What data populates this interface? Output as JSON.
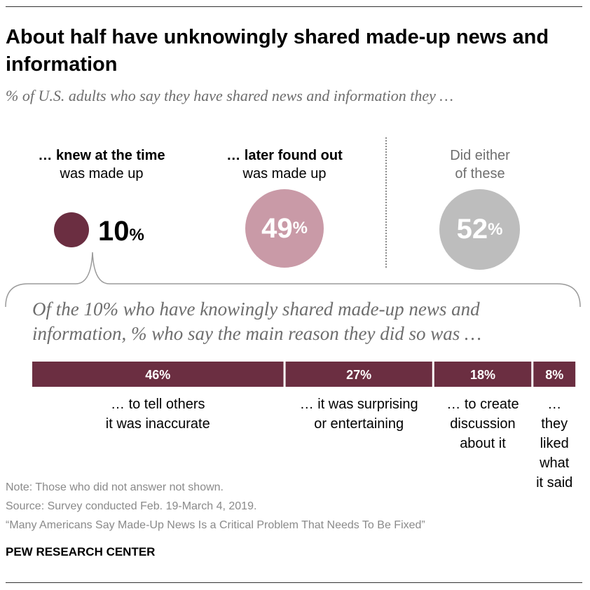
{
  "title": "About half have unknowingly shared made-up news and information",
  "subtitle": "% of U.S. adults who say they have shared news and information they …",
  "columns": {
    "knew": {
      "head_bold": "… knew at the time",
      "head_rest": "was made up",
      "value": "10",
      "unit": "%"
    },
    "later": {
      "head_bold": "… later found out",
      "head_rest": "was made up",
      "value": "49",
      "unit": "%"
    },
    "either": {
      "head_line1": "Did either",
      "head_line2": "of these",
      "value": "52",
      "unit": "%"
    }
  },
  "question": "Of the 10% who have knowingly shared made-up news and information, % who say the main reason they did so was …",
  "chart_data": {
    "type": "bar",
    "orientation": "horizontal-stacked",
    "title": "Of the 10% who have knowingly shared made-up news and information, % who say the main reason they did so was …",
    "categories": [
      "… to tell others it was inaccurate",
      "… it was surprising or entertaining",
      "… to create discussion about it",
      "… they liked what it said"
    ],
    "values": [
      46,
      27,
      18,
      8
    ],
    "labels": [
      "46%",
      "27%",
      "18%",
      "8%"
    ],
    "reason_lines": [
      [
        "… to tell others",
        "it was inaccurate"
      ],
      [
        "… it was surprising",
        "or entertaining"
      ],
      [
        "… to create",
        "discussion",
        "about it"
      ],
      [
        "… they",
        "liked",
        "what",
        "it said"
      ]
    ],
    "overall_shares": [
      {
        "label": "… knew at the time was made up",
        "value": 10
      },
      {
        "label": "… later found out was made up",
        "value": 49
      },
      {
        "label": "Did either of these",
        "value": 52
      }
    ]
  },
  "colors": {
    "knew": "#6b2e41",
    "later": "#c99aa7",
    "either": "#bdbdbd",
    "bar": "#6b2e41"
  },
  "footer": {
    "note": "Note: Those who did not answer not shown.",
    "source": "Source: Survey conducted Feb. 19-March 4, 2019.",
    "report": "“Many Americans Say Made-Up News Is a Critical Problem That Needs To Be Fixed”",
    "brand": "PEW RESEARCH CENTER"
  }
}
